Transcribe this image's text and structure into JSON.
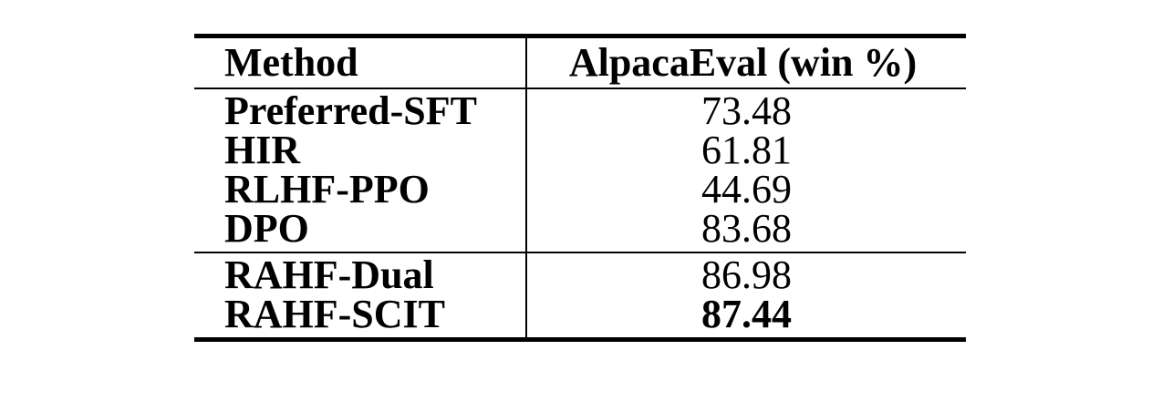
{
  "chart_data": {
    "type": "table",
    "columns": [
      "Method",
      "AlpacaEval (win %)"
    ],
    "groups": [
      {
        "rows": [
          {
            "method": "Preferred-SFT",
            "value": "73.48",
            "bold": false
          },
          {
            "method": "HIR",
            "value": "61.81",
            "bold": false
          },
          {
            "method": "RLHF-PPO",
            "value": "44.69",
            "bold": false
          },
          {
            "method": "DPO",
            "value": "83.68",
            "bold": false
          }
        ]
      },
      {
        "rows": [
          {
            "method": "RAHF-Dual",
            "value": "86.98",
            "bold": false
          },
          {
            "method": "RAHF-SCIT",
            "value": "87.44",
            "bold": true
          }
        ]
      }
    ]
  }
}
